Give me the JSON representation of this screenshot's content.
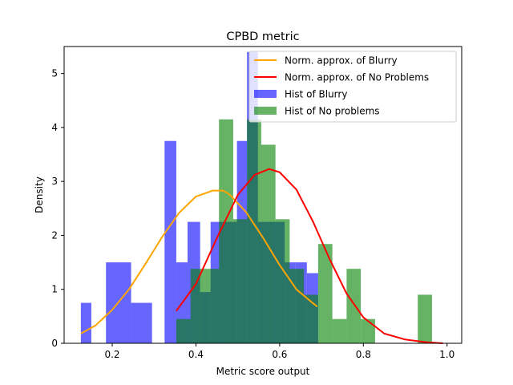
{
  "chart_data": {
    "type": "bar",
    "title": "CPBD metric",
    "xlabel": "Metric score output",
    "ylabel": "Density",
    "xlim": [
      0.085,
      1.035
    ],
    "ylim": [
      0,
      5.5
    ],
    "xticks": [
      0.2,
      0.4,
      0.6,
      0.8,
      1.0
    ],
    "xtick_labels": [
      "0.2",
      "0.4",
      "0.6",
      "0.8",
      "1.0"
    ],
    "yticks": [
      0,
      1,
      2,
      3,
      4,
      5
    ],
    "ytick_labels": [
      "0",
      "1",
      "2",
      "3",
      "4",
      "5"
    ],
    "legend_position": "top-right",
    "legend": [
      {
        "label": "Norm. approx. of Blurry",
        "kind": "line",
        "color": "#ffa500"
      },
      {
        "label": "Norm. approx. of No Problems",
        "kind": "line",
        "color": "#ff0000"
      },
      {
        "label": "Hist of Blurry",
        "kind": "patch",
        "color": "#0000ff"
      },
      {
        "label": "Hist of No problems",
        "kind": "patch",
        "color": "#008000"
      }
    ],
    "histograms": [
      {
        "name": "Hist of Blurry",
        "color": "#0000ff",
        "alpha": 0.6,
        "bins": [
          {
            "x0": 0.125,
            "x1": 0.15,
            "density": 0.75
          },
          {
            "x0": 0.15,
            "x1": 0.185,
            "density": 0
          },
          {
            "x0": 0.185,
            "x1": 0.245,
            "density": 1.5
          },
          {
            "x0": 0.245,
            "x1": 0.295,
            "density": 0.75
          },
          {
            "x0": 0.295,
            "x1": 0.325,
            "density": 0
          },
          {
            "x0": 0.325,
            "x1": 0.353,
            "density": 3.75
          },
          {
            "x0": 0.353,
            "x1": 0.38,
            "density": 1.5
          },
          {
            "x0": 0.38,
            "x1": 0.41,
            "density": 2.25
          },
          {
            "x0": 0.41,
            "x1": 0.435,
            "density": 0.95
          },
          {
            "x0": 0.435,
            "x1": 0.498,
            "density": 2.25
          },
          {
            "x0": 0.498,
            "x1": 0.522,
            "density": 3.75
          },
          {
            "x0": 0.522,
            "x1": 0.548,
            "density": 5.4
          },
          {
            "x0": 0.548,
            "x1": 0.612,
            "density": 2.25
          },
          {
            "x0": 0.612,
            "x1": 0.638,
            "density": 1.5
          },
          {
            "x0": 0.638,
            "x1": 0.665,
            "density": 1.5
          },
          {
            "x0": 0.665,
            "x1": 0.692,
            "density": 1.3
          }
        ]
      },
      {
        "name": "Hist of No problems",
        "color": "#008000",
        "alpha": 0.6,
        "bins": [
          {
            "x0": 0.353,
            "x1": 0.387,
            "density": 0.45
          },
          {
            "x0": 0.387,
            "x1": 0.421,
            "density": 1.38
          },
          {
            "x0": 0.421,
            "x1": 0.455,
            "density": 1.38
          },
          {
            "x0": 0.455,
            "x1": 0.489,
            "density": 4.15
          },
          {
            "x0": 0.489,
            "x1": 0.522,
            "density": 2.3
          },
          {
            "x0": 0.522,
            "x1": 0.556,
            "density": 4.15
          },
          {
            "x0": 0.556,
            "x1": 0.59,
            "density": 3.68
          },
          {
            "x0": 0.59,
            "x1": 0.624,
            "density": 2.3
          },
          {
            "x0": 0.624,
            "x1": 0.658,
            "density": 1.38
          },
          {
            "x0": 0.658,
            "x1": 0.692,
            "density": 0.9
          },
          {
            "x0": 0.692,
            "x1": 0.726,
            "density": 1.84
          },
          {
            "x0": 0.726,
            "x1": 0.76,
            "density": 0.45
          },
          {
            "x0": 0.76,
            "x1": 0.794,
            "density": 1.38
          },
          {
            "x0": 0.794,
            "x1": 0.828,
            "density": 0.45
          },
          {
            "x0": 0.828,
            "x1": 0.862,
            "density": 0
          },
          {
            "x0": 0.862,
            "x1": 0.896,
            "density": 0
          },
          {
            "x0": 0.896,
            "x1": 0.93,
            "density": 0
          },
          {
            "x0": 0.93,
            "x1": 0.964,
            "density": 0.9
          }
        ]
      }
    ],
    "series": [
      {
        "name": "Norm. approx. of Blurry",
        "type": "line",
        "color": "#ffa500",
        "x": [
          0.125,
          0.16,
          0.2,
          0.24,
          0.28,
          0.32,
          0.36,
          0.4,
          0.44,
          0.465,
          0.48,
          0.52,
          0.56,
          0.6,
          0.64,
          0.68,
          0.69
        ],
        "y": [
          0.18,
          0.33,
          0.62,
          1.0,
          1.48,
          1.98,
          2.42,
          2.72,
          2.83,
          2.83,
          2.76,
          2.43,
          1.96,
          1.45,
          1.0,
          0.74,
          0.68
        ]
      },
      {
        "name": "Norm. approx. of No Problems",
        "type": "line",
        "color": "#ff0000",
        "x": [
          0.353,
          0.4,
          0.45,
          0.5,
          0.54,
          0.575,
          0.6,
          0.64,
          0.68,
          0.72,
          0.76,
          0.8,
          0.85,
          0.9,
          0.95,
          0.99
        ],
        "y": [
          0.6,
          1.1,
          1.95,
          2.75,
          3.12,
          3.23,
          3.17,
          2.85,
          2.25,
          1.55,
          0.92,
          0.48,
          0.18,
          0.07,
          0.02,
          0.0
        ]
      }
    ]
  }
}
